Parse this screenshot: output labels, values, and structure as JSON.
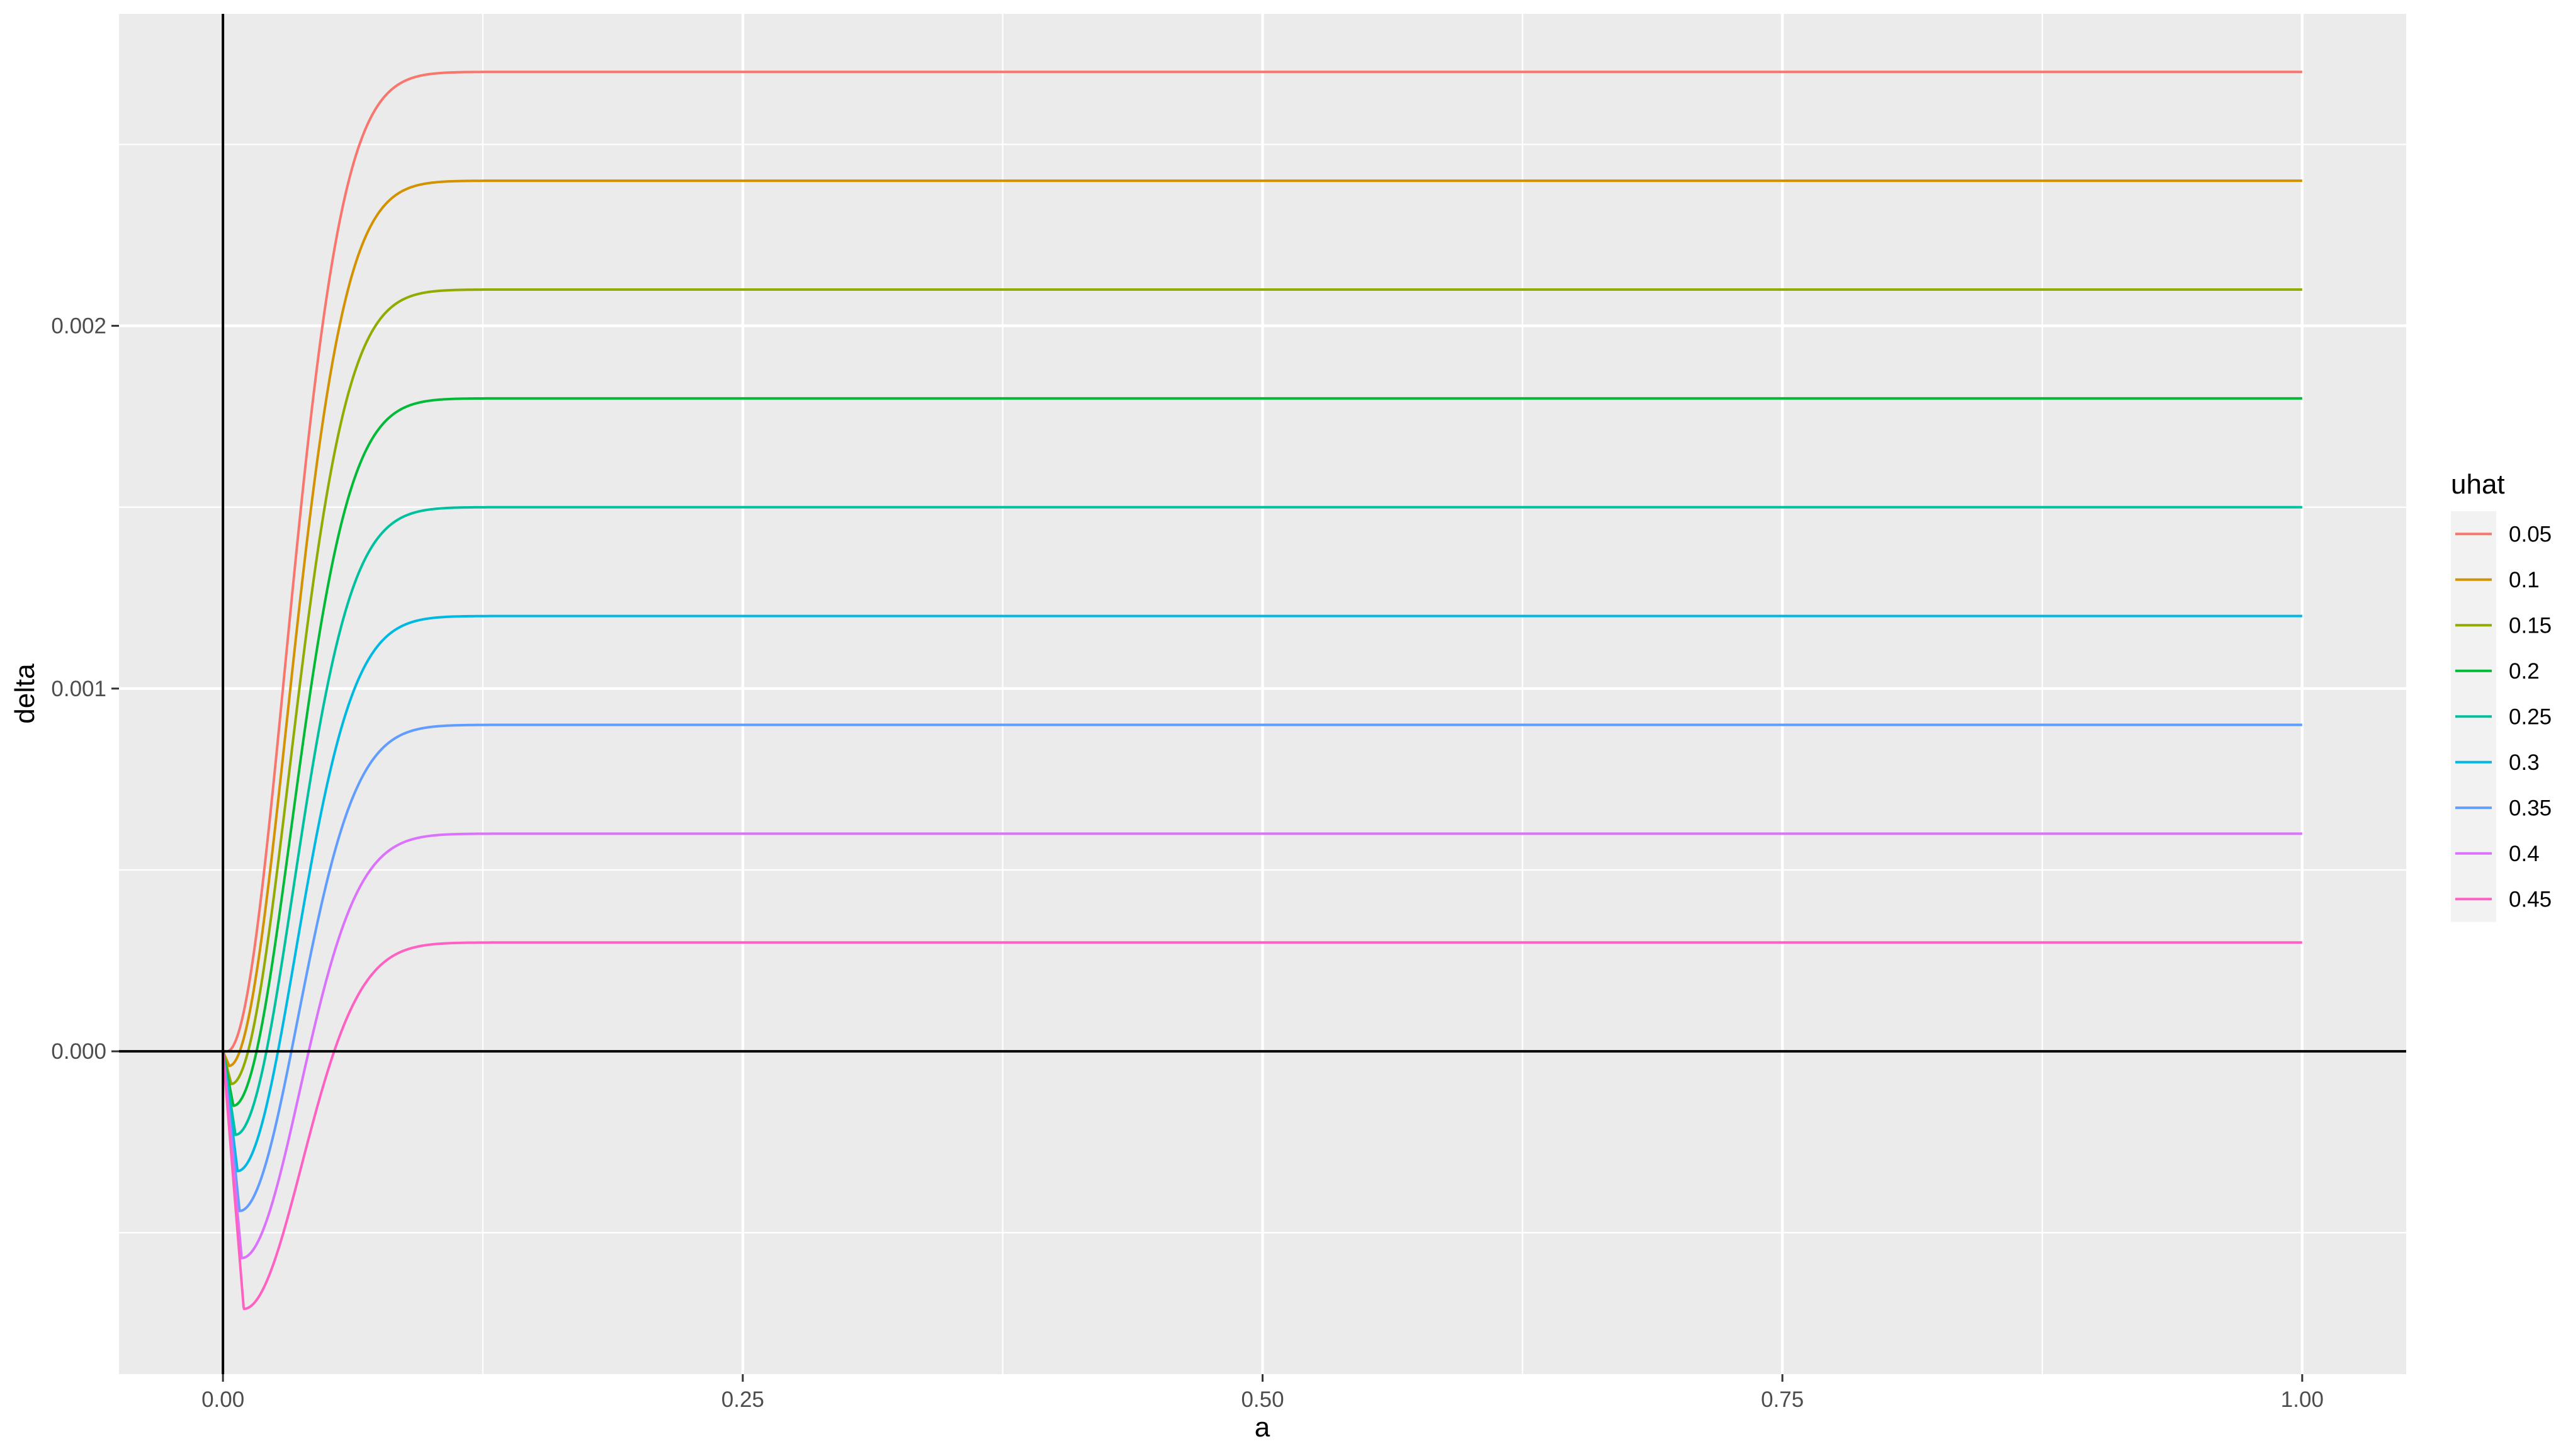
{
  "chart_data": {
    "type": "line",
    "xlabel": "a",
    "ylabel": "delta",
    "xlim": [
      -0.05,
      1.05
    ],
    "ylim": [
      -0.00089,
      0.00286
    ],
    "x_ticks": [
      0.0,
      0.25,
      0.5,
      0.75,
      1.0
    ],
    "x_tick_labels": [
      "0.00",
      "0.25",
      "0.50",
      "0.75",
      "1.00"
    ],
    "y_ticks": [
      0.0,
      0.001,
      0.002
    ],
    "y_tick_labels": [
      "0.000",
      "0.001",
      "0.002"
    ],
    "grid": true,
    "reference_lines": {
      "hline_y": 0,
      "vline_x": 0
    },
    "legend": {
      "title": "uhat",
      "position": "right"
    },
    "series": [
      {
        "name": "0.05",
        "color": "#F8766D",
        "plateau": 0.0027,
        "min": -0.0,
        "min_at": 0.002
      },
      {
        "name": "0.1",
        "color": "#D39200",
        "plateau": 0.0024,
        "min": -4e-05,
        "min_at": 0.003
      },
      {
        "name": "0.15",
        "color": "#93AA00",
        "plateau": 0.0021,
        "min": -9e-05,
        "min_at": 0.004
      },
      {
        "name": "0.2",
        "color": "#00BA38",
        "plateau": 0.0018,
        "min": -0.00015,
        "min_at": 0.005
      },
      {
        "name": "0.25",
        "color": "#00C19F",
        "plateau": 0.0015,
        "min": -0.00023,
        "min_at": 0.006
      },
      {
        "name": "0.3",
        "color": "#00B9E3",
        "plateau": 0.0012,
        "min": -0.00033,
        "min_at": 0.007
      },
      {
        "name": "0.35",
        "color": "#619CFF",
        "plateau": 0.0009,
        "min": -0.00044,
        "min_at": 0.008
      },
      {
        "name": "0.4",
        "color": "#DB72FB",
        "plateau": 0.0006,
        "min": -0.00057,
        "min_at": 0.009
      },
      {
        "name": "0.45",
        "color": "#FF61C3",
        "plateau": 0.0003,
        "min": -0.00071,
        "min_at": 0.01
      }
    ]
  }
}
